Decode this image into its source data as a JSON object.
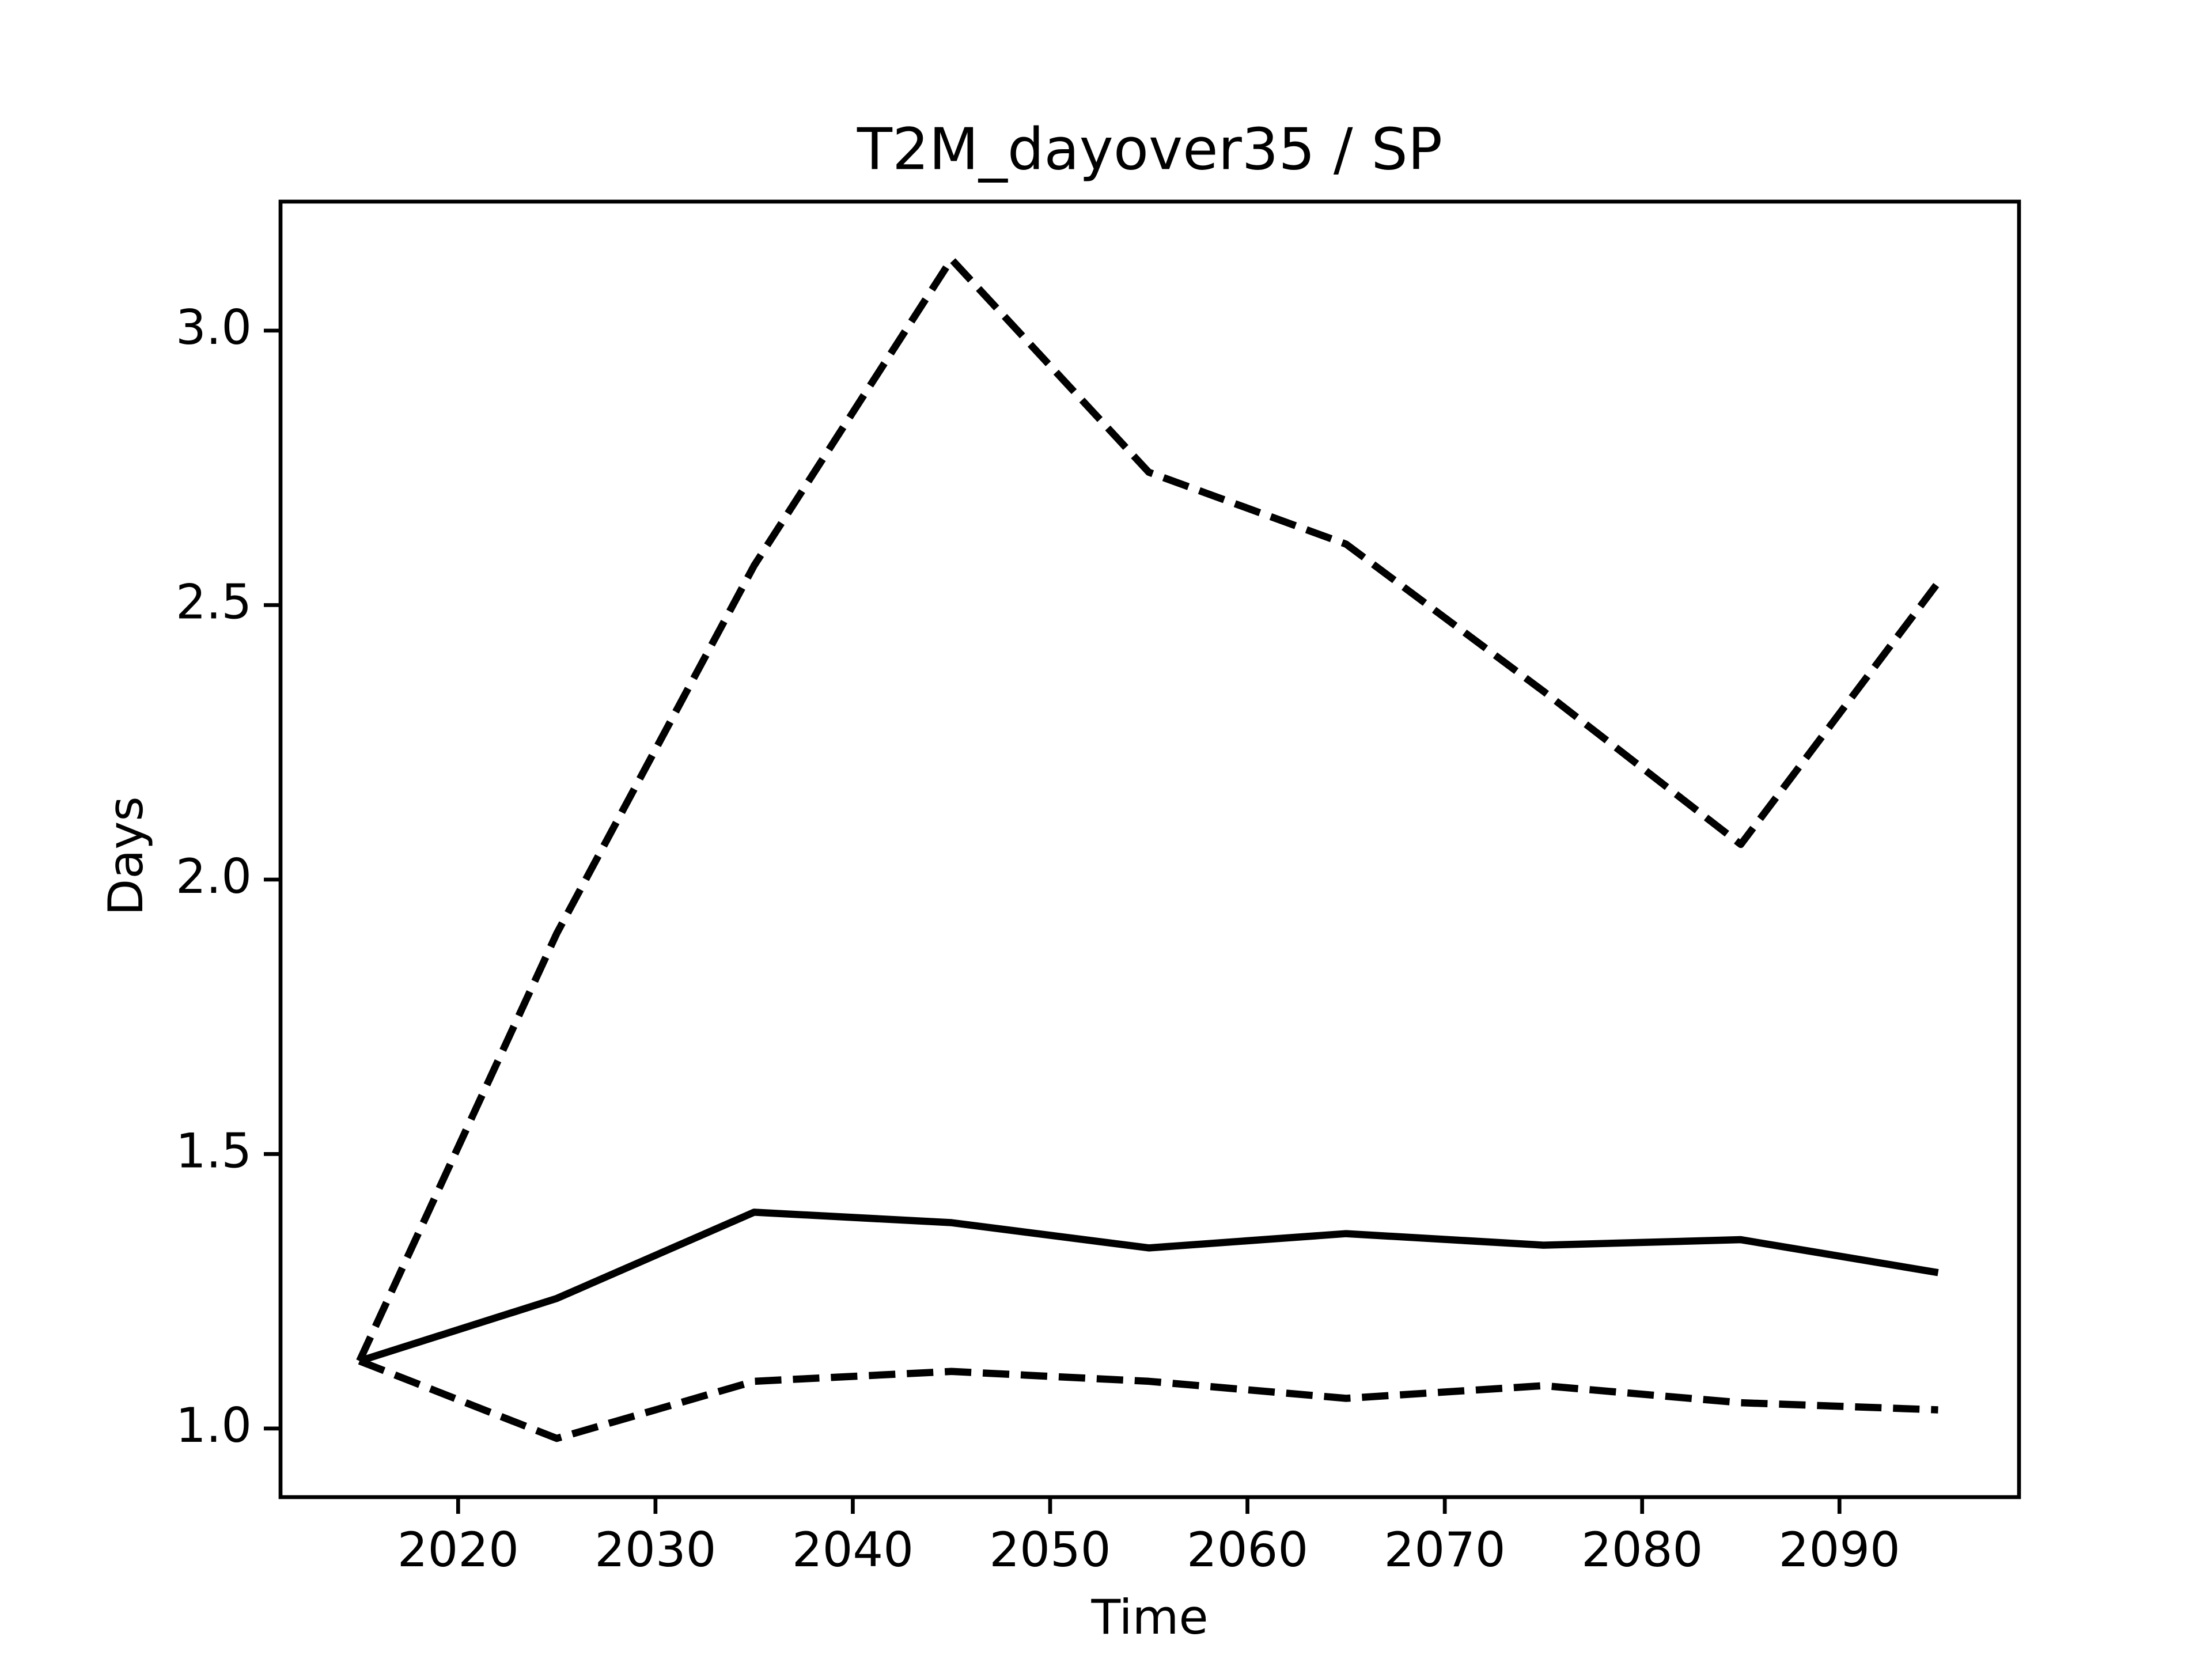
{
  "chart_data": {
    "type": "line",
    "title": "T2M_dayover35 / SP",
    "x_label": "Time",
    "y_label": "Days",
    "x": [
      2015,
      2025,
      2035,
      2045,
      2055,
      2065,
      2075,
      2085,
      2095
    ],
    "series": [
      {
        "color": "#000000",
        "dashed": false,
        "values": [
          1.123,
          1.237,
          1.394,
          1.375,
          1.329,
          1.355,
          1.334,
          1.344,
          1.284
        ]
      },
      {
        "color": "#000000",
        "dashed": true,
        "values": [
          1.123,
          1.902,
          2.572,
          3.13,
          2.742,
          2.611,
          2.343,
          2.064,
          2.541
        ]
      },
      {
        "color": "#000000",
        "dashed": true,
        "values": [
          1.123,
          0.982,
          1.086,
          1.104,
          1.086,
          1.055,
          1.078,
          1.047,
          1.034
        ]
      }
    ],
    "xlim": [
      2011.0,
      2099.1
    ],
    "xticks": [
      2020,
      2030,
      2040,
      2050,
      2060,
      2070,
      2080,
      2090
    ],
    "ylim": [
      0.875,
      3.235
    ],
    "yticks": [
      {
        "value": 1,
        "label": "1.0"
      },
      1.5,
      {
        "value": 2,
        "label": "2.0"
      },
      2.5,
      {
        "value": 3,
        "label": "3.0"
      }
    ],
    "grid": false
  }
}
